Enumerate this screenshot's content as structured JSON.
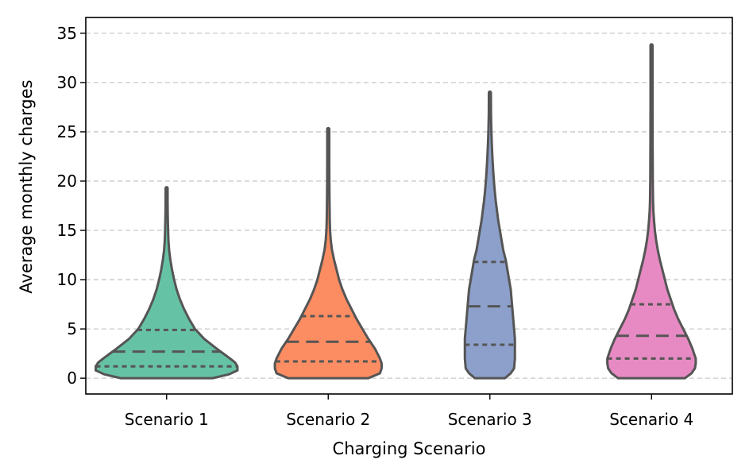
{
  "chart_data": {
    "type": "violin",
    "title": "",
    "xlabel": "Charging Scenario",
    "ylabel": "Average monthly charges",
    "ylim": [
      -1.6,
      36.6
    ],
    "yticks": [
      0,
      5,
      10,
      15,
      20,
      25,
      30,
      35
    ],
    "grid": "horizontal dashed",
    "categories": [
      "Scenario 1",
      "Scenario 2",
      "Scenario 3",
      "Scenario 4"
    ],
    "violins": [
      {
        "name": "Scenario 1",
        "color": "#66c2a5",
        "min": 0,
        "max": 19.3,
        "quartiles": [
          1.2,
          2.7,
          4.9
        ],
        "profile": [
          [
            0,
            0.55
          ],
          [
            0.4,
            0.75
          ],
          [
            0.8,
            0.85
          ],
          [
            1.2,
            0.85
          ],
          [
            1.6,
            0.82
          ],
          [
            2.0,
            0.76
          ],
          [
            2.5,
            0.68
          ],
          [
            3.0,
            0.6
          ],
          [
            4.0,
            0.45
          ],
          [
            5.0,
            0.34
          ],
          [
            6.0,
            0.27
          ],
          [
            7.0,
            0.21
          ],
          [
            8.0,
            0.16
          ],
          [
            9.0,
            0.12
          ],
          [
            10.0,
            0.09
          ],
          [
            11.0,
            0.065
          ],
          [
            12.0,
            0.045
          ],
          [
            13.0,
            0.03
          ],
          [
            14.0,
            0.022
          ],
          [
            15.0,
            0.018
          ],
          [
            16.0,
            0.015
          ],
          [
            17.0,
            0.013
          ],
          [
            18.0,
            0.012
          ],
          [
            19.3,
            0.012
          ]
        ]
      },
      {
        "name": "Scenario 2",
        "color": "#fc8d62",
        "min": 0,
        "max": 25.3,
        "quartiles": [
          1.7,
          3.7,
          6.3
        ],
        "profile": [
          [
            0,
            0.48
          ],
          [
            0.5,
            0.62
          ],
          [
            1.0,
            0.64
          ],
          [
            1.5,
            0.64
          ],
          [
            2.0,
            0.62
          ],
          [
            3.0,
            0.56
          ],
          [
            4.0,
            0.48
          ],
          [
            5.0,
            0.41
          ],
          [
            6.0,
            0.34
          ],
          [
            7.0,
            0.28
          ],
          [
            8.0,
            0.22
          ],
          [
            9.0,
            0.17
          ],
          [
            10.0,
            0.13
          ],
          [
            11.0,
            0.1
          ],
          [
            12.0,
            0.07
          ],
          [
            13.0,
            0.045
          ],
          [
            14.0,
            0.03
          ],
          [
            15.0,
            0.022
          ],
          [
            16.0,
            0.018
          ],
          [
            18.0,
            0.015
          ],
          [
            20.0,
            0.013
          ],
          [
            22.0,
            0.012
          ],
          [
            25.3,
            0.012
          ]
        ]
      },
      {
        "name": "Scenario 3",
        "color": "#8da0cb",
        "min": 0,
        "max": 29.0,
        "quartiles": [
          3.4,
          7.3,
          11.8
        ],
        "profile": [
          [
            0,
            0.18
          ],
          [
            0.5,
            0.25
          ],
          [
            1.0,
            0.29
          ],
          [
            2.0,
            0.3
          ],
          [
            3.0,
            0.3
          ],
          [
            4.0,
            0.3
          ],
          [
            5.0,
            0.29
          ],
          [
            6.0,
            0.28
          ],
          [
            7.0,
            0.27
          ],
          [
            8.0,
            0.26
          ],
          [
            9.0,
            0.25
          ],
          [
            10.0,
            0.23
          ],
          [
            11.0,
            0.21
          ],
          [
            12.0,
            0.19
          ],
          [
            13.0,
            0.16
          ],
          [
            14.0,
            0.14
          ],
          [
            15.0,
            0.12
          ],
          [
            16.0,
            0.1
          ],
          [
            17.0,
            0.085
          ],
          [
            18.0,
            0.07
          ],
          [
            19.0,
            0.058
          ],
          [
            20.0,
            0.048
          ],
          [
            21.0,
            0.04
          ],
          [
            22.0,
            0.033
          ],
          [
            23.0,
            0.027
          ],
          [
            24.0,
            0.022
          ],
          [
            25.0,
            0.018
          ],
          [
            26.0,
            0.015
          ],
          [
            27.0,
            0.013
          ],
          [
            29.0,
            0.012
          ]
        ]
      },
      {
        "name": "Scenario 4",
        "color": "#e78ac3",
        "min": 0,
        "max": 33.8,
        "quartiles": [
          2.0,
          4.3,
          7.5
        ],
        "profile": [
          [
            0,
            0.4
          ],
          [
            0.5,
            0.48
          ],
          [
            1.0,
            0.52
          ],
          [
            1.5,
            0.53
          ],
          [
            2.0,
            0.53
          ],
          [
            3.0,
            0.49
          ],
          [
            4.0,
            0.44
          ],
          [
            5.0,
            0.38
          ],
          [
            6.0,
            0.32
          ],
          [
            7.0,
            0.27
          ],
          [
            8.0,
            0.23
          ],
          [
            9.0,
            0.19
          ],
          [
            10.0,
            0.16
          ],
          [
            11.0,
            0.13
          ],
          [
            12.0,
            0.1
          ],
          [
            13.0,
            0.075
          ],
          [
            14.0,
            0.055
          ],
          [
            15.0,
            0.04
          ],
          [
            16.0,
            0.03
          ],
          [
            17.0,
            0.022
          ],
          [
            18.0,
            0.018
          ],
          [
            20.0,
            0.015
          ],
          [
            24.0,
            0.013
          ],
          [
            28.0,
            0.012
          ],
          [
            33.8,
            0.012
          ]
        ]
      }
    ]
  }
}
